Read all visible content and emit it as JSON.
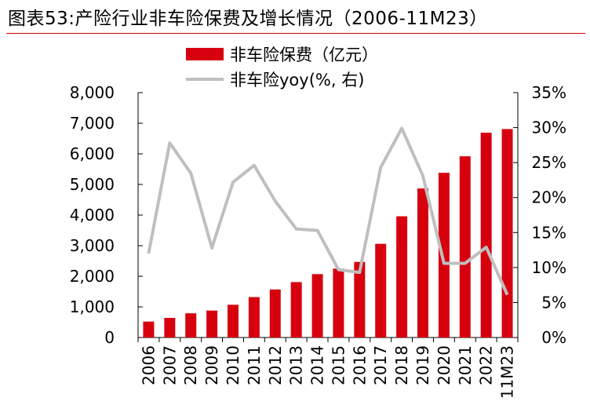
{
  "title": "图表53:产险行业非车险保费及增长情况（2006-11M23）",
  "chart_data": {
    "type": "bar",
    "categories": [
      "2006",
      "2007",
      "2008",
      "2009",
      "2010",
      "2011",
      "2012",
      "2013",
      "2014",
      "2015",
      "2016",
      "2017",
      "2018",
      "2019",
      "2020",
      "2021",
      "2022",
      "11M23"
    ],
    "series": [
      {
        "name": "非车险保费（亿元）",
        "type": "bar",
        "axis": "left",
        "color": "#d7000f",
        "values": [
          520,
          640,
          790,
          880,
          1070,
          1320,
          1570,
          1810,
          2070,
          2250,
          2470,
          3060,
          3960,
          4870,
          5380,
          5920,
          6690,
          6810
        ]
      },
      {
        "name": "非车险yoy(%, 右)",
        "type": "line",
        "axis": "right",
        "color": "#bfbfbf",
        "values": [
          12.0,
          27.8,
          23.5,
          12.8,
          22.2,
          24.6,
          19.5,
          15.5,
          15.3,
          9.7,
          9.3,
          24.3,
          29.9,
          23.1,
          10.6,
          10.6,
          12.9,
          6.1
        ]
      }
    ],
    "ylim_left": [
      0,
      8000
    ],
    "yticks_left": [
      "0",
      "1,000",
      "2,000",
      "3,000",
      "4,000",
      "5,000",
      "6,000",
      "7,000",
      "8,000"
    ],
    "ylim_right": [
      0,
      35
    ],
    "yticks_right": [
      "0%",
      "5%",
      "10%",
      "15%",
      "20%",
      "25%",
      "30%",
      "35%"
    ],
    "legend_position": "top",
    "grid": false
  }
}
